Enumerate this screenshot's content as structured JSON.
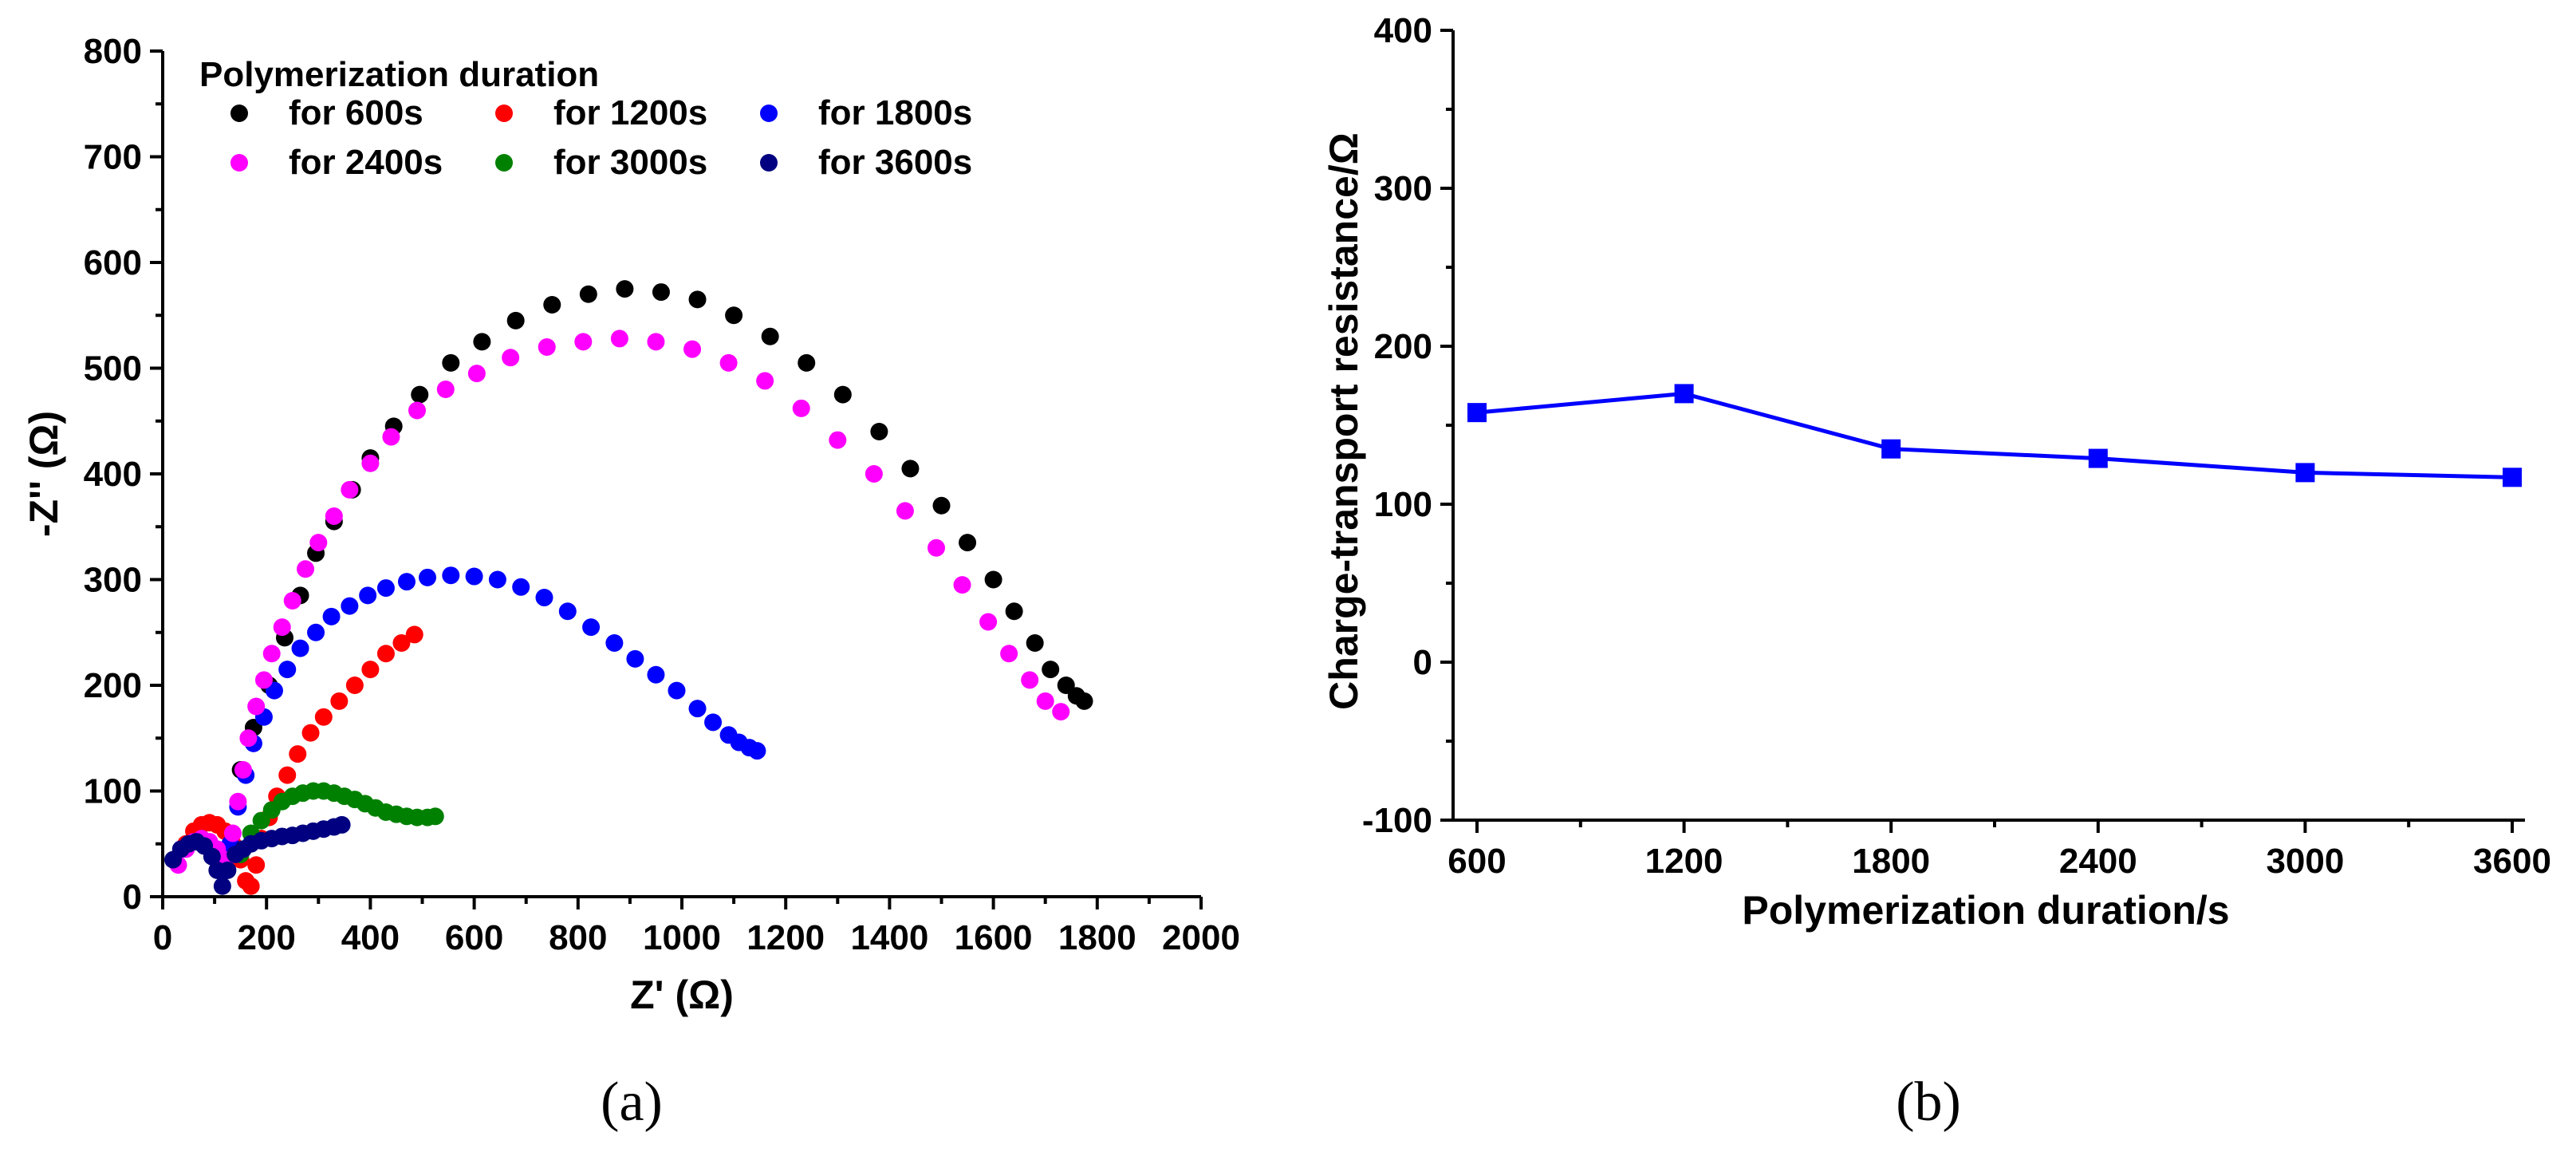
{
  "chart_data": [
    {
      "id": "a",
      "type": "scatter",
      "panel_label": "(a)",
      "xlabel": "Z' (Ω)",
      "ylabel": "-Z'' (Ω)",
      "xlim": [
        0,
        2000
      ],
      "ylim": [
        0,
        800
      ],
      "xticks": [
        "0",
        "200",
        "400",
        "600",
        "800",
        "1000",
        "1200",
        "1400",
        "1600",
        "1800",
        "2000"
      ],
      "yticks": [
        "0",
        "100",
        "200",
        "300",
        "400",
        "500",
        "600",
        "700",
        "800"
      ],
      "legend_title": "Polymerization duration",
      "legend_position": "top-left",
      "series": [
        {
          "name": "for 600s",
          "color": "#000000",
          "x": [
            150,
            175,
            205,
            235,
            265,
            295,
            330,
            365,
            400,
            445,
            495,
            555,
            615,
            680,
            750,
            820,
            890,
            960,
            1030,
            1100,
            1170,
            1240,
            1310,
            1380,
            1440,
            1500,
            1550,
            1600,
            1640,
            1680,
            1710,
            1740,
            1760,
            1775
          ],
          "y": [
            120,
            160,
            200,
            245,
            285,
            325,
            355,
            385,
            415,
            445,
            475,
            505,
            525,
            545,
            560,
            570,
            575,
            572,
            565,
            550,
            530,
            505,
            475,
            440,
            405,
            370,
            335,
            300,
            270,
            240,
            215,
            200,
            190,
            185
          ]
        },
        {
          "name": "for 1200s",
          "color": "#ff0000",
          "x": [
            45,
            60,
            75,
            90,
            105,
            120,
            135,
            150,
            160,
            170,
            180,
            190,
            205,
            220,
            240,
            260,
            285,
            310,
            340,
            370,
            400,
            430,
            460,
            485
          ],
          "y": [
            50,
            62,
            68,
            70,
            68,
            62,
            50,
            35,
            15,
            10,
            30,
            55,
            75,
            95,
            115,
            135,
            155,
            170,
            185,
            200,
            215,
            230,
            240,
            248
          ]
        },
        {
          "name": "for 1800s",
          "color": "#0000ff",
          "x": [
            130,
            145,
            160,
            175,
            195,
            215,
            240,
            265,
            295,
            325,
            360,
            395,
            430,
            470,
            510,
            555,
            600,
            645,
            690,
            735,
            780,
            825,
            870,
            910,
            950,
            990,
            1030,
            1060,
            1090,
            1110,
            1130,
            1145
          ],
          "y": [
            50,
            85,
            115,
            145,
            170,
            195,
            215,
            235,
            250,
            265,
            275,
            285,
            292,
            298,
            302,
            304,
            303,
            300,
            293,
            283,
            270,
            255,
            240,
            225,
            210,
            195,
            178,
            165,
            153,
            146,
            141,
            138
          ]
        },
        {
          "name": "for 2400s",
          "color": "#ff00ff",
          "x": [
            30,
            45,
            60,
            75,
            90,
            105,
            120,
            135,
            145,
            155,
            165,
            180,
            195,
            210,
            230,
            250,
            275,
            300,
            330,
            360,
            400,
            440,
            490,
            545,
            605,
            670,
            740,
            810,
            880,
            950,
            1020,
            1090,
            1160,
            1230,
            1300,
            1370,
            1430,
            1490,
            1540,
            1590,
            1630,
            1670,
            1700,
            1730
          ],
          "y": [
            30,
            45,
            52,
            55,
            52,
            45,
            35,
            60,
            90,
            120,
            150,
            180,
            205,
            230,
            255,
            280,
            310,
            335,
            360,
            385,
            410,
            435,
            460,
            480,
            495,
            510,
            520,
            525,
            528,
            525,
            518,
            505,
            488,
            462,
            432,
            400,
            365,
            330,
            295,
            260,
            230,
            205,
            185,
            175
          ]
        },
        {
          "name": "for 3000s",
          "color": "#008000",
          "x": [
            150,
            170,
            190,
            210,
            230,
            250,
            270,
            290,
            310,
            330,
            350,
            370,
            390,
            410,
            430,
            450,
            470,
            490,
            510,
            525
          ],
          "y": [
            40,
            60,
            72,
            82,
            90,
            95,
            98,
            100,
            100,
            98,
            95,
            92,
            88,
            84,
            80,
            78,
            76,
            75,
            75,
            76
          ]
        },
        {
          "name": "for 3600s",
          "color": "#000080",
          "x": [
            20,
            35,
            50,
            65,
            80,
            95,
            105,
            115,
            125,
            140,
            155,
            170,
            190,
            210,
            230,
            250,
            270,
            290,
            310,
            330,
            345
          ],
          "y": [
            35,
            45,
            50,
            52,
            48,
            38,
            25,
            10,
            25,
            40,
            45,
            50,
            53,
            55,
            57,
            58,
            60,
            62,
            64,
            66,
            68
          ]
        }
      ]
    },
    {
      "id": "b",
      "type": "line",
      "panel_label": "(b)",
      "xlabel": "Polymerization duration/s",
      "ylabel": "Charge-transport resistance/Ω",
      "xlim": [
        600,
        3600
      ],
      "ylim": [
        -100,
        400
      ],
      "xticks": [
        "600",
        "1200",
        "1800",
        "2400",
        "3000",
        "3600"
      ],
      "yticks": [
        "-100",
        "0",
        "100",
        "200",
        "300",
        "400"
      ],
      "series": [
        {
          "color": "#0000ff",
          "x": [
            600,
            1200,
            1800,
            2400,
            3000,
            3600
          ],
          "y": [
            158,
            170,
            135,
            129,
            120,
            117
          ]
        }
      ]
    }
  ]
}
